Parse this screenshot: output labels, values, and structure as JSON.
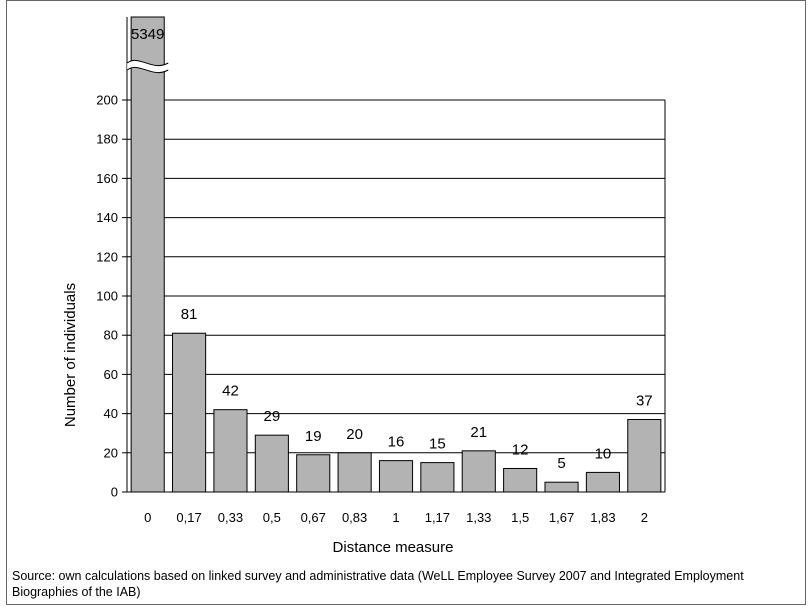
{
  "chart_data": {
    "type": "bar",
    "categories": [
      "0",
      "0,17",
      "0,33",
      "0,5",
      "0,67",
      "0,83",
      "1",
      "1,17",
      "1,33",
      "1,5",
      "1,67",
      "1,83",
      "2"
    ],
    "values": [
      5349,
      81,
      42,
      29,
      19,
      20,
      16,
      15,
      21,
      12,
      5,
      10,
      37
    ],
    "data_labels": [
      "5349",
      "81",
      "42",
      "29",
      "19",
      "20",
      "16",
      "15",
      "21",
      "12",
      "5",
      "10",
      "37"
    ],
    "xlabel": "Distance measure",
    "ylabel": "Number of individuals",
    "ylim": [
      0,
      200
    ],
    "yticks": [
      "0",
      "20",
      "40",
      "60",
      "80",
      "100",
      "120",
      "140",
      "160",
      "180",
      "200"
    ],
    "axis_break": true,
    "grid": true,
    "bar_color": "#b3b3b3",
    "legend": false
  },
  "source_note": "Source: own calculations based on linked survey and administrative data (WeLL Employee Survey 2007 and Integrated Employment Biographies of the IAB)"
}
